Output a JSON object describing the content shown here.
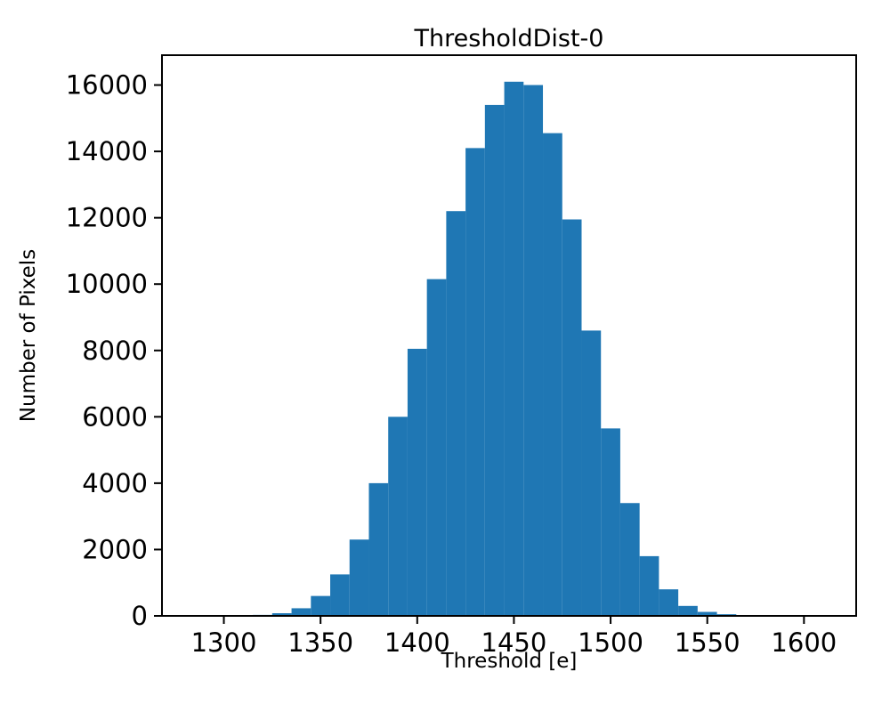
{
  "chart_data": {
    "type": "bar",
    "title": "ThresholdDist-0",
    "xlabel": "Threshold [e]",
    "ylabel": "Number of Pixels",
    "bar_color": "#1f77b4",
    "bin_start": 1285,
    "bin_width": 10,
    "values": [
      3,
      5,
      12,
      30,
      80,
      230,
      600,
      1250,
      2300,
      4000,
      6000,
      8050,
      10150,
      12200,
      14100,
      15400,
      16100,
      16000,
      14550,
      11950,
      8600,
      5650,
      3400,
      1800,
      800,
      300,
      120,
      50,
      20,
      8,
      3,
      2,
      1
    ],
    "xlim": [
      1268,
      1627
    ],
    "ylim": [
      0,
      16900
    ],
    "xticks": [
      1300,
      1350,
      1400,
      1450,
      1500,
      1550,
      1600
    ],
    "yticks": [
      0,
      2000,
      4000,
      6000,
      8000,
      10000,
      12000,
      14000,
      16000
    ],
    "grid": false,
    "legend": null
  }
}
